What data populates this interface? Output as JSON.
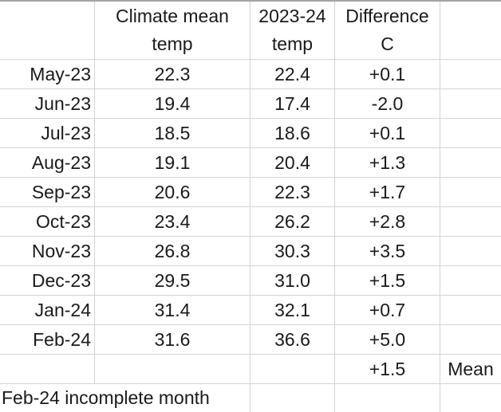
{
  "colors": {
    "background": "#ffffff",
    "gridline": "#d4d4d4",
    "top_edge": "#a3a3a3",
    "text": "#1a1a1a"
  },
  "table": {
    "header": {
      "month_col": "",
      "climate_mean": {
        "line1": "Climate mean",
        "line2": "temp"
      },
      "season": {
        "line1": "2023-24",
        "line2": "temp"
      },
      "difference": {
        "line1": "Difference",
        "line2": "C"
      },
      "extra_col": ""
    },
    "rows": [
      {
        "month": "May-23",
        "climate_mean": "22.3",
        "season_temp": "22.4",
        "difference": "+0.1"
      },
      {
        "month": "Jun-23",
        "climate_mean": "19.4",
        "season_temp": "17.4",
        "difference": "-2.0"
      },
      {
        "month": "Jul-23",
        "climate_mean": "18.5",
        "season_temp": "18.6",
        "difference": "+0.1"
      },
      {
        "month": "Aug-23",
        "climate_mean": "19.1",
        "season_temp": "20.4",
        "difference": "+1.3"
      },
      {
        "month": "Sep-23",
        "climate_mean": "20.6",
        "season_temp": "22.3",
        "difference": "+1.7"
      },
      {
        "month": "Oct-23",
        "climate_mean": "23.4",
        "season_temp": "26.2",
        "difference": "+2.8"
      },
      {
        "month": "Nov-23",
        "climate_mean": "26.8",
        "season_temp": "30.3",
        "difference": "+3.5"
      },
      {
        "month": "Dec-23",
        "climate_mean": "29.5",
        "season_temp": "31.0",
        "difference": "+1.5"
      },
      {
        "month": "Jan-24",
        "climate_mean": "31.4",
        "season_temp": "32.1",
        "difference": "+0.7"
      },
      {
        "month": "Feb-24",
        "climate_mean": "31.6",
        "season_temp": "36.6",
        "difference": "+5.0"
      }
    ],
    "summary": {
      "difference": "+1.5",
      "label": "Mean"
    },
    "footnote": "Feb-24 incomplete month"
  }
}
